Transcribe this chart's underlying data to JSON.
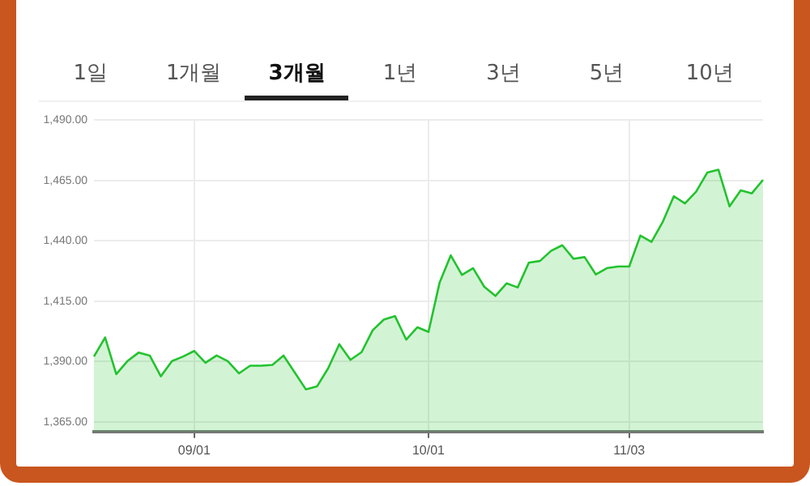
{
  "chart_data": {
    "type": "area",
    "annotations": [
      "1일",
      "1개월",
      "3개월",
      "1년",
      "3년",
      "5년",
      "10년"
    ],
    "categories": [
      null,
      null,
      null,
      null,
      null,
      null,
      null,
      null,
      null,
      "09/01",
      null,
      null,
      null,
      null,
      null,
      null,
      null,
      null,
      null,
      null,
      null,
      null,
      null,
      null,
      null,
      null,
      null,
      null,
      null,
      null,
      "10/01",
      null,
      null,
      null,
      null,
      null,
      null,
      null,
      null,
      null,
      null,
      null,
      null,
      null,
      null,
      null,
      null,
      null,
      "11/03",
      null,
      null,
      null,
      null,
      null,
      null,
      null,
      null,
      null,
      null,
      null,
      null
    ],
    "series": [
      {
        "color": "#22c32e",
        "values": [
          1392.1,
          1400.0,
          1384.8,
          1390.2,
          1393.7,
          1392.5,
          1383.9,
          1390.2,
          1392.1,
          1394.4,
          1389.5,
          1392.5,
          1390.2,
          1385.1,
          1388.3,
          1388.3,
          1388.6,
          1392.5,
          1385.5,
          1378.5,
          1379.7,
          1387.2,
          1397.2,
          1390.7,
          1393.9,
          1403.0,
          1407.4,
          1408.8,
          1399.1,
          1404.2,
          1402.3,
          1422.8,
          1434.0,
          1425.9,
          1428.7,
          1421.0,
          1417.2,
          1422.4,
          1420.7,
          1431.0,
          1431.7,
          1435.9,
          1438.2,
          1432.6,
          1433.3,
          1426.1,
          1428.7,
          1429.4,
          1429.4,
          1442.2,
          1439.6,
          1447.8,
          1458.5,
          1455.5,
          1460.4,
          1468.3,
          1469.5,
          1454.3,
          1460.9,
          1459.7,
          1465.3
        ]
      }
    ],
    "ylim": [
      1361,
      1490
    ],
    "yticks": [
      {
        "value": 1365,
        "label": "1,365.00"
      },
      {
        "value": 1390,
        "label": "1,390.00"
      },
      {
        "value": 1415,
        "label": "1,415.00"
      },
      {
        "value": 1440,
        "label": "1,440.00"
      },
      {
        "value": 1465,
        "label": "1,465.00"
      },
      {
        "value": 1490,
        "label": "1,490.00"
      }
    ],
    "grid": true,
    "legend": false,
    "marker": "none",
    "line_style": "solid"
  }
}
